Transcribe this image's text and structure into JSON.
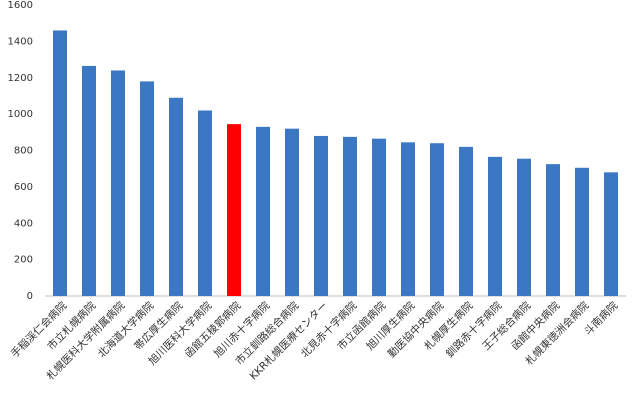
{
  "chart_data": {
    "type": "bar",
    "categories": [
      "手稲渓仁会病院",
      "市立札幌病院",
      "札幌医科大学附属病院",
      "北海道大学病院",
      "帯広厚生病院",
      "旭川医科大学病院",
      "函館五稜郭病院",
      "旭川赤十字病院",
      "市立釧路総合病院",
      "KKR札幌医療センター",
      "北見赤十字病院",
      "市立函館病院",
      "旭川厚生病院",
      "勤医協中央病院",
      "札幌厚生病院",
      "釧路赤十字病院",
      "王子総合病院",
      "函館中央病院",
      "札幌東徳洲会病院",
      "斗南病院"
    ],
    "values": [
      1460,
      1265,
      1240,
      1180,
      1090,
      1020,
      945,
      930,
      920,
      880,
      875,
      865,
      845,
      840,
      820,
      765,
      755,
      725,
      705,
      680
    ],
    "colors": [
      "#3c77c4",
      "#3c77c4",
      "#3c77c4",
      "#3c77c4",
      "#3c77c4",
      "#3c77c4",
      "#ff0000",
      "#3c77c4",
      "#3c77c4",
      "#3c77c4",
      "#3c77c4",
      "#3c77c4",
      "#3c77c4",
      "#3c77c4",
      "#3c77c4",
      "#3c77c4",
      "#3c77c4",
      "#3c77c4",
      "#3c77c4",
      "#3c77c4"
    ],
    "ylim": [
      0,
      1600
    ],
    "yticks": [
      0,
      200,
      400,
      600,
      800,
      1000,
      1200,
      1400,
      1600
    ],
    "grid": false
  }
}
